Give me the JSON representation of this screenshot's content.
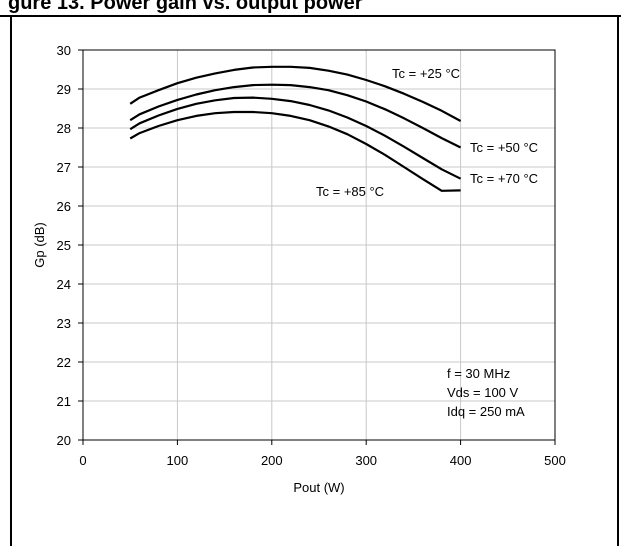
{
  "header": {
    "title": "gure 13.   Power gain vs. output power"
  },
  "chart_data": {
    "type": "line",
    "title": "",
    "xlabel": "Pout (W)",
    "ylabel": "Gp (dB)",
    "xlim": [
      0,
      500
    ],
    "ylim": [
      20,
      30
    ],
    "xticks": [
      0,
      100,
      200,
      300,
      400,
      500
    ],
    "yticks": [
      20,
      21,
      22,
      23,
      24,
      25,
      26,
      27,
      28,
      29,
      30
    ],
    "grid": true,
    "line_color": "#000000",
    "grid_color": "#c8c8c8",
    "x": [
      50,
      60,
      80,
      100,
      120,
      140,
      160,
      180,
      200,
      220,
      240,
      260,
      280,
      300,
      320,
      340,
      360,
      380,
      400
    ],
    "series": [
      {
        "name": "Tc = +25 °C",
        "values": [
          28.62,
          28.78,
          28.97,
          29.15,
          29.29,
          29.4,
          29.49,
          29.55,
          29.57,
          29.57,
          29.54,
          29.47,
          29.37,
          29.23,
          29.07,
          28.88,
          28.67,
          28.44,
          28.18
        ]
      },
      {
        "name": "Tc = +50 °C",
        "values": [
          28.2,
          28.35,
          28.55,
          28.72,
          28.86,
          28.97,
          29.05,
          29.1,
          29.11,
          29.1,
          29.05,
          28.97,
          28.84,
          28.68,
          28.48,
          28.25,
          28.0,
          27.74,
          27.5
        ]
      },
      {
        "name": "Tc = +70 °C",
        "values": [
          27.97,
          28.12,
          28.32,
          28.49,
          28.62,
          28.71,
          28.77,
          28.78,
          28.75,
          28.69,
          28.59,
          28.45,
          28.27,
          28.05,
          27.8,
          27.52,
          27.23,
          26.94,
          26.7
        ]
      },
      {
        "name": "Tc = +85 °C",
        "values": [
          27.73,
          27.87,
          28.05,
          28.2,
          28.31,
          28.38,
          28.41,
          28.41,
          28.38,
          28.31,
          28.2,
          28.04,
          27.84,
          27.59,
          27.31,
          27.0,
          26.69,
          26.39,
          26.4
        ]
      }
    ],
    "series_labels": [
      "Tc = +25 °C",
      "Tc = +50 °C",
      "Tc = +70 °C",
      "Tc = +85 °C"
    ],
    "annotation": [
      "f = 30 MHz",
      "Vds = 100 V",
      "Idq = 250 mA"
    ]
  }
}
